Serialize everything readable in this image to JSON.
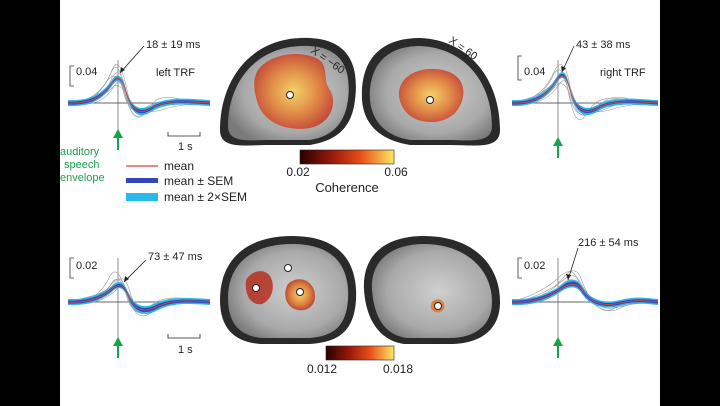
{
  "figure": {
    "top_left": {
      "scale": "0.04",
      "latency": "18 ± 19 ms",
      "label": "left TRF",
      "time_scale": "1 s"
    },
    "top_right": {
      "scale": "0.04",
      "latency": "43 ± 38 ms",
      "label": "right TRF"
    },
    "bottom_left": {
      "scale": "0.02",
      "latency": "73 ± 47 ms",
      "time_scale": "1 s"
    },
    "bottom_right": {
      "scale": "0.02",
      "latency": "216 ± 54 ms"
    },
    "brain_labels": {
      "left": "X = −60",
      "right": "X = 60"
    },
    "stimulus_label": [
      "auditory",
      "speech",
      "envelope"
    ],
    "legend": [
      {
        "label": "mean",
        "color": "#e0413a"
      },
      {
        "label": "mean ± SEM",
        "color": "#3347b8"
      },
      {
        "label": "mean ± 2×SEM",
        "color": "#29b8ea"
      }
    ],
    "colorbar_top": {
      "min": "0.02",
      "max": "0.06",
      "title": "Coherence"
    },
    "colorbar_bottom": {
      "min": "0.012",
      "max": "0.018"
    },
    "colors": {
      "arrow_green": "#1aa34a",
      "trace_grey": "#9a9a9a"
    }
  }
}
